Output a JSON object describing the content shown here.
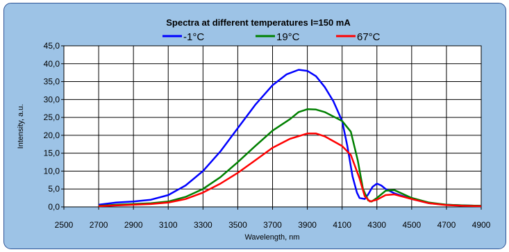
{
  "chart_data": {
    "type": "line",
    "title": "Spectra at different temperatures I=150 mA",
    "xlabel": "Wavelength, nm",
    "ylabel": "Intensity, a.u.",
    "xlim": [
      2500,
      4900
    ],
    "ylim": [
      0,
      45
    ],
    "x_ticks": [
      2500,
      2700,
      2900,
      3100,
      3300,
      3500,
      3700,
      3900,
      4100,
      4300,
      4500,
      4700,
      4900
    ],
    "y_ticks": [
      "0,0",
      "5,0",
      "10,0",
      "15,0",
      "20,0",
      "25,0",
      "30,0",
      "35,0",
      "40,0",
      "45,0"
    ],
    "grid": true,
    "legend_position": "top",
    "series": [
      {
        "name": "-1°C",
        "color": "#0000ff",
        "points": [
          [
            2700,
            0.6
          ],
          [
            2800,
            1.2
          ],
          [
            2900,
            1.5
          ],
          [
            3000,
            2.0
          ],
          [
            3100,
            3.3
          ],
          [
            3200,
            6.0
          ],
          [
            3300,
            10.0
          ],
          [
            3400,
            15.5
          ],
          [
            3500,
            22.0
          ],
          [
            3600,
            28.5
          ],
          [
            3700,
            34.0
          ],
          [
            3780,
            37.0
          ],
          [
            3850,
            38.3
          ],
          [
            3900,
            38.0
          ],
          [
            3950,
            36.5
          ],
          [
            4000,
            33.5
          ],
          [
            4050,
            29.5
          ],
          [
            4100,
            24.0
          ],
          [
            4130,
            17.0
          ],
          [
            4160,
            8.5
          ],
          [
            4185,
            4.0
          ],
          [
            4200,
            2.5
          ],
          [
            4230,
            2.2
          ],
          [
            4250,
            3.5
          ],
          [
            4275,
            5.6
          ],
          [
            4300,
            6.5
          ],
          [
            4325,
            6.0
          ],
          [
            4350,
            5.0
          ],
          [
            4400,
            3.8
          ],
          [
            4500,
            2.2
          ],
          [
            4600,
            1.0
          ],
          [
            4700,
            0.6
          ],
          [
            4800,
            0.4
          ],
          [
            4900,
            0.3
          ]
        ]
      },
      {
        "name": "19°C",
        "color": "#008000",
        "points": [
          [
            2700,
            0.3
          ],
          [
            2800,
            0.6
          ],
          [
            2900,
            0.8
          ],
          [
            3000,
            1.0
          ],
          [
            3100,
            1.5
          ],
          [
            3200,
            2.8
          ],
          [
            3300,
            5.0
          ],
          [
            3400,
            8.3
          ],
          [
            3500,
            12.5
          ],
          [
            3600,
            17.0
          ],
          [
            3700,
            21.3
          ],
          [
            3800,
            24.5
          ],
          [
            3850,
            26.5
          ],
          [
            3900,
            27.3
          ],
          [
            3950,
            27.2
          ],
          [
            4000,
            26.5
          ],
          [
            4100,
            24.0
          ],
          [
            4150,
            21.0
          ],
          [
            4190,
            13.0
          ],
          [
            4220,
            5.0
          ],
          [
            4250,
            1.8
          ],
          [
            4270,
            1.5
          ],
          [
            4300,
            2.5
          ],
          [
            4350,
            4.5
          ],
          [
            4400,
            4.7
          ],
          [
            4500,
            2.5
          ],
          [
            4600,
            1.2
          ],
          [
            4700,
            0.6
          ],
          [
            4800,
            0.4
          ],
          [
            4900,
            0.3
          ]
        ]
      },
      {
        "name": "67°C",
        "color": "#ff0000",
        "points": [
          [
            2700,
            0.2
          ],
          [
            2800,
            0.4
          ],
          [
            2900,
            0.6
          ],
          [
            3000,
            0.8
          ],
          [
            3100,
            1.2
          ],
          [
            3200,
            2.2
          ],
          [
            3300,
            4.0
          ],
          [
            3400,
            6.5
          ],
          [
            3500,
            9.5
          ],
          [
            3600,
            13.0
          ],
          [
            3700,
            16.5
          ],
          [
            3800,
            19.0
          ],
          [
            3900,
            20.5
          ],
          [
            3950,
            20.5
          ],
          [
            4000,
            19.7
          ],
          [
            4100,
            17.0
          ],
          [
            4150,
            14.5
          ],
          [
            4200,
            8.0
          ],
          [
            4230,
            3.0
          ],
          [
            4260,
            1.5
          ],
          [
            4300,
            2.0
          ],
          [
            4350,
            3.3
          ],
          [
            4400,
            3.5
          ],
          [
            4500,
            2.2
          ],
          [
            4600,
            1.0
          ],
          [
            4700,
            0.5
          ],
          [
            4800,
            0.3
          ],
          [
            4900,
            0.2
          ]
        ]
      }
    ]
  }
}
